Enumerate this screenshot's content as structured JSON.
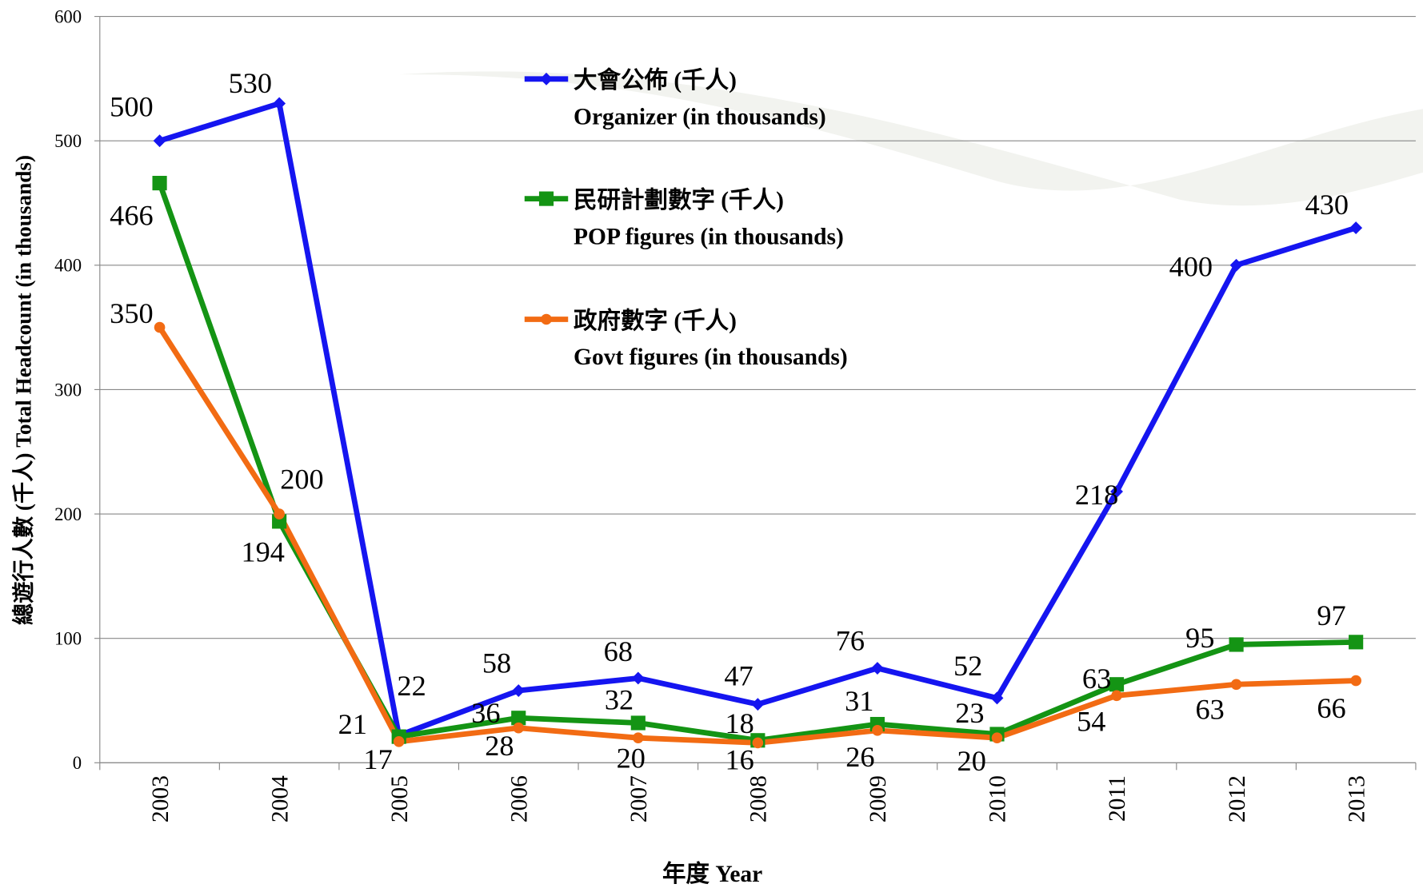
{
  "chart_data": {
    "type": "line",
    "x_label": "年度 Year",
    "y_label": "總遊行人數 (千人) Total Headcount (in thousands)",
    "categories": [
      "2003",
      "2004",
      "2005",
      "2006",
      "2007",
      "2008",
      "2009",
      "2010",
      "2011",
      "2012",
      "2013"
    ],
    "ylim": [
      0,
      600
    ],
    "yticks": [
      0,
      100,
      200,
      300,
      400,
      500,
      600
    ],
    "grid": true,
    "series": [
      {
        "name": "大會公佈 (千人)",
        "subname": "Organizer (in thousands)",
        "color": "#1515f0",
        "marker": "diamond",
        "values": [
          500,
          530,
          22,
          58,
          68,
          47,
          76,
          52,
          218,
          400,
          430
        ]
      },
      {
        "name": "民研計劃數字 (千人)",
        "subname": "POP figures (in thousands)",
        "color": "#149414",
        "marker": "square",
        "values": [
          466,
          194,
          21,
          36,
          32,
          18,
          31,
          23,
          63,
          95,
          97
        ]
      },
      {
        "name": "政府數字 (千人)",
        "subname": "Govt figures (in thousands)",
        "color": "#f26b13",
        "marker": "circle",
        "values": [
          350,
          200,
          17,
          28,
          20,
          16,
          26,
          20,
          54,
          63,
          66
        ]
      }
    ]
  }
}
